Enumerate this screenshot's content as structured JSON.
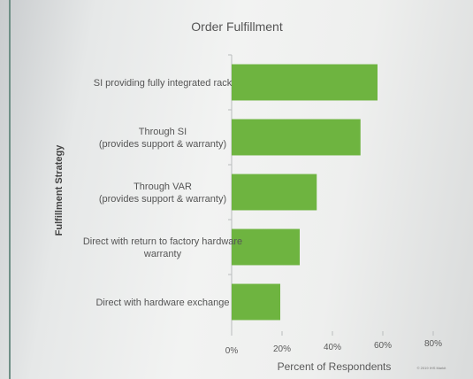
{
  "chart_data": {
    "type": "bar",
    "orientation": "horizontal",
    "title": "Order Fulfillment",
    "xlabel": "Percent of Respondents",
    "ylabel": "Fulfillment Strategy",
    "categories": [
      [
        "SI providing fully integrated rack"
      ],
      [
        "Through SI",
        "(provides support & warranty)"
      ],
      [
        "Through VAR",
        "(provides support & warranty)"
      ],
      [
        "Direct with return to factory hardware",
        "warranty"
      ],
      [
        "Direct with hardware exchange"
      ]
    ],
    "values": [
      60,
      53,
      35,
      28,
      20
    ],
    "xlim": [
      0,
      80
    ],
    "xticks": [
      "0%",
      "20%",
      "40%",
      "60%",
      "80%"
    ],
    "bar_color": "#6eb440",
    "grid": false,
    "legend": "none",
    "copyright": "© 2019 IHS Markit"
  }
}
